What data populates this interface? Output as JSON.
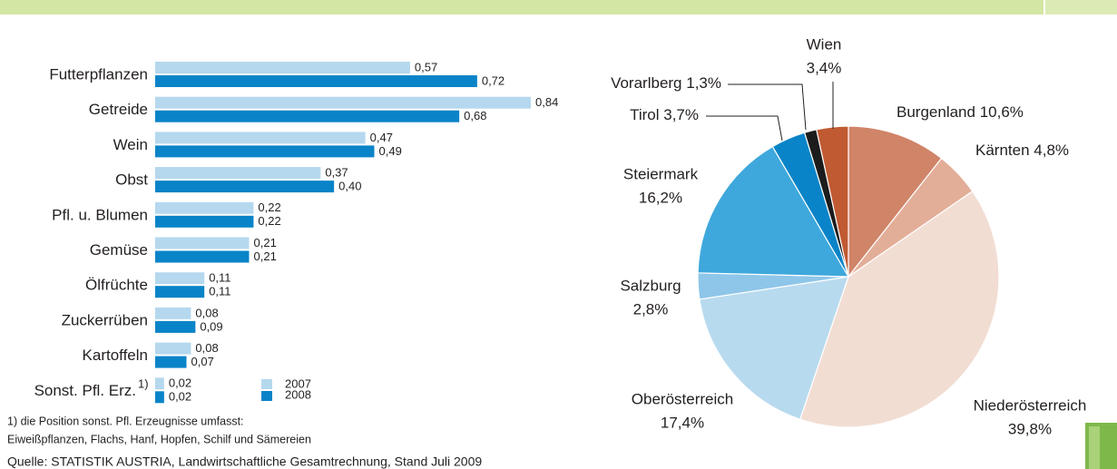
{
  "chart_data": [
    {
      "type": "bar",
      "orientation": "horizontal",
      "categories": [
        "Futterpflanzen",
        "Getreide",
        "Wein",
        "Obst",
        "Pfl. u. Blumen",
        "Gemüse",
        "Ölfrüchte",
        "Zuckerrüben",
        "Kartoffeln",
        "Sonst. Pfl. Erz."
      ],
      "footnote_marker": "1)",
      "series": [
        {
          "name": "2007",
          "color": "#b5d8ee",
          "values": [
            0.57,
            0.84,
            0.47,
            0.37,
            0.22,
            0.21,
            0.11,
            0.08,
            0.08,
            0.02
          ],
          "value_labels": [
            "0,57",
            "0,84",
            "0,47",
            "0,37",
            "0,22",
            "0,21",
            "0,11",
            "0,08",
            "0,08",
            "0,02"
          ]
        },
        {
          "name": "2008",
          "color": "#0a84c8",
          "values": [
            0.72,
            0.68,
            0.49,
            0.4,
            0.22,
            0.21,
            0.11,
            0.09,
            0.07,
            0.02
          ],
          "value_labels": [
            "0,72",
            "0,68",
            "0,49",
            "0,40",
            "0,22",
            "0,21",
            "0,11",
            "0,09",
            "0,07",
            "0,02"
          ]
        }
      ]
    },
    {
      "type": "pie",
      "categories": [
        "Burgenland",
        "Kärnten",
        "Niederösterreich",
        "Oberösterreich",
        "Salzburg",
        "Steiermark",
        "Tirol",
        "Vorarlberg",
        "Wien"
      ],
      "values": [
        10.6,
        4.8,
        39.8,
        17.4,
        2.8,
        16.2,
        3.7,
        1.3,
        3.4
      ],
      "value_labels": [
        "10,6%",
        "4,8%",
        "39,8%",
        "17,4%",
        "2,8%",
        "16,2%",
        "3,7%",
        "1,3%",
        "3,4%"
      ],
      "colors": [
        "#d08468",
        "#e3ae98",
        "#f2ddd3",
        "#b8daef",
        "#8ec6e9",
        "#3ea8dc",
        "#0a84c8",
        "#1c1c1c",
        "#c05a32"
      ]
    }
  ],
  "footnote": [
    "1) die Position sonst. Pfl. Erzeugnisse umfasst:",
    "Eiweißpflanzen, Flachs, Hanf, Hopfen, Schilf und Sämereien"
  ],
  "source": "Quelle: STATISTIK AUSTRIA, Landwirtschaftliche Gesamtrechnung, Stand Juli 2009"
}
